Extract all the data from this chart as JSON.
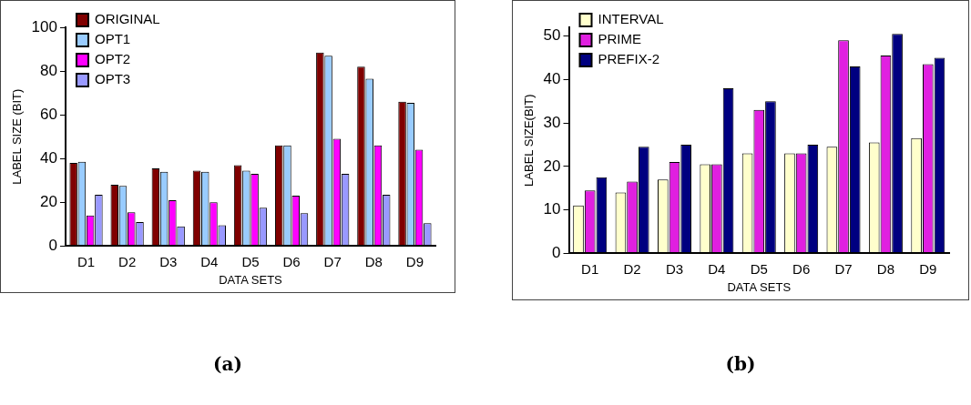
{
  "chart_data": [
    {
      "type": "bar",
      "xlabel": "DATA SETS",
      "ylabel": "LABEL SIZE (BIT)",
      "categories": [
        "D1",
        "D2",
        "D3",
        "D4",
        "D5",
        "D6",
        "D7",
        "D8",
        "D9"
      ],
      "series": [
        {
          "name": "ORIGINAL",
          "color": "#800000",
          "values": [
            38,
            28,
            35.5,
            34.5,
            37,
            46,
            88.5,
            82,
            66
          ]
        },
        {
          "name": "OPT1",
          "color": "#99ccff",
          "values": [
            38.5,
            27.5,
            34,
            34,
            34.5,
            46,
            87,
            76.5,
            65.5
          ]
        },
        {
          "name": "OPT2",
          "color": "#ff00ff",
          "values": [
            14,
            15.5,
            21,
            20,
            33,
            23,
            49,
            46,
            44
          ]
        },
        {
          "name": "OPT3",
          "color": "#9999ff",
          "values": [
            23.5,
            11,
            9,
            9.5,
            17.5,
            15,
            33,
            23.5,
            10.5
          ]
        }
      ],
      "ylim": [
        0,
        100
      ],
      "yticks": [
        0,
        20,
        40,
        60,
        80,
        100
      ],
      "grid": false,
      "legend": "top left",
      "annotations": [
        "(a)"
      ]
    },
    {
      "type": "bar",
      "xlabel": "DATA SETS",
      "ylabel": "LABEL SIZE(BIT)",
      "categories": [
        "D1",
        "D2",
        "D3",
        "D4",
        "D5",
        "D6",
        "D7",
        "D8",
        "D9"
      ],
      "series": [
        {
          "name": "INTERVAL",
          "color": "#ffffcc",
          "values": [
            11,
            14,
            17,
            20.5,
            23,
            23,
            24.5,
            25.5,
            26.5
          ]
        },
        {
          "name": "PRIME",
          "color": "#e020e0",
          "values": [
            14.5,
            16.5,
            21,
            20.5,
            33,
            23,
            49,
            45.5,
            43.5
          ]
        },
        {
          "name": "PREFIX-2",
          "color": "#000080",
          "values": [
            17.5,
            24.5,
            25,
            38,
            35,
            25,
            43,
            50.5,
            45
          ]
        }
      ],
      "ylim": [
        0,
        52
      ],
      "yticks": [
        0,
        10,
        20,
        30,
        40,
        50
      ],
      "grid": false,
      "legend": "top left",
      "annotations": [
        "(b)"
      ]
    }
  ]
}
